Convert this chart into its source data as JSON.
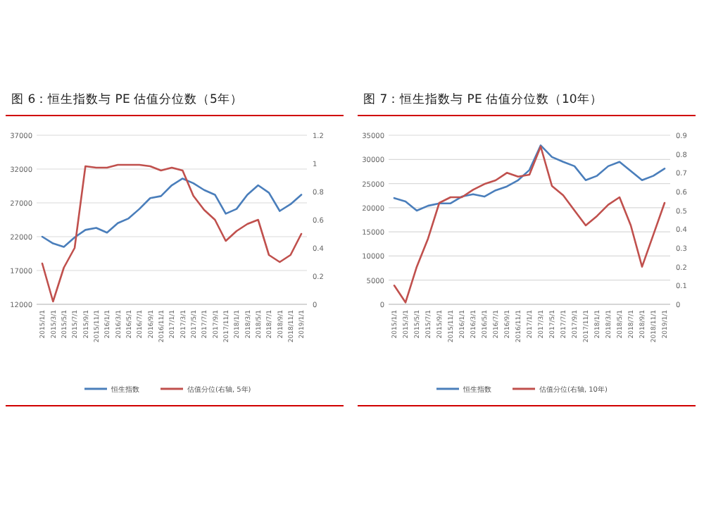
{
  "chart_data": [
    {
      "type": "line",
      "title": "图 6：恒生指数与 PE 估值分位数（5年）",
      "categories": [
        "2015/1/1",
        "2015/3/1",
        "2015/5/1",
        "2015/7/1",
        "2015/9/1",
        "2015/11/1",
        "2016/1/1",
        "2016/3/1",
        "2016/5/1",
        "2016/7/1",
        "2016/9/1",
        "2016/11/1",
        "2017/1/1",
        "2017/3/1",
        "2017/5/1",
        "2017/7/1",
        "2017/9/1",
        "2017/11/1",
        "2018/1/1",
        "2018/3/1",
        "2018/5/1",
        "2018/7/1",
        "2018/9/1",
        "2018/11/1",
        "2019/1/1"
      ],
      "series": [
        {
          "name": "恒生指数",
          "color": "#4a7ebb",
          "values": [
            22000,
            21000,
            20500,
            21900,
            23000,
            23300,
            22600,
            24000,
            24700,
            26100,
            27700,
            28000,
            29600,
            30600,
            29900,
            28900,
            28200,
            25400,
            26100,
            28200,
            29600,
            28500,
            25800,
            26800,
            28200
          ]
        },
        {
          "name": "估值分位(右轴, 5年)",
          "color": "#c0504d",
          "axis": "y2",
          "values": [
            0.29,
            0.02,
            0.26,
            0.4,
            0.98,
            0.97,
            0.97,
            0.99,
            0.99,
            0.99,
            0.98,
            0.95,
            0.97,
            0.95,
            0.77,
            0.67,
            0.6,
            0.45,
            0.52,
            0.57,
            0.6,
            0.35,
            0.3,
            0.35,
            0.5
          ]
        }
      ],
      "ylim": [
        12000,
        37000
      ],
      "yticks": [
        12000,
        17000,
        22000,
        27000,
        32000,
        37000
      ],
      "y2lim": [
        0,
        1.2
      ],
      "y2ticks": [
        0,
        0.2,
        0.4,
        0.6,
        0.8,
        1,
        1.2
      ],
      "grid": "y",
      "legend": "bottom",
      "marker": "none"
    },
    {
      "type": "line",
      "title": "图 7：恒生指数与 PE 估值分位数（10年）",
      "categories": [
        "2015/1/1",
        "2015/3/1",
        "2015/5/1",
        "2015/7/1",
        "2015/9/1",
        "2015/11/1",
        "2016/1/1",
        "2016/3/1",
        "2016/5/1",
        "2016/7/1",
        "2016/9/1",
        "2016/11/1",
        "2017/1/1",
        "2017/3/1",
        "2017/5/1",
        "2017/7/1",
        "2017/9/1",
        "2017/11/1",
        "2018/1/1",
        "2018/3/1",
        "2018/5/1",
        "2018/7/1",
        "2018/9/1",
        "2018/11/1",
        "2019/1/1"
      ],
      "series": [
        {
          "name": "恒生指数",
          "color": "#4a7ebb",
          "values": [
            22000,
            21300,
            19400,
            20400,
            20900,
            20900,
            22300,
            22800,
            22300,
            23600,
            24400,
            25700,
            27800,
            32900,
            30500,
            29500,
            28600,
            25700,
            26600,
            28600,
            29500,
            27600,
            25700,
            26600,
            28100
          ]
        },
        {
          "name": "估值分位(右轴, 10年)",
          "color": "#c0504d",
          "axis": "y2",
          "values": [
            0.1,
            0.01,
            0.2,
            0.35,
            0.54,
            0.57,
            0.57,
            0.61,
            0.64,
            0.66,
            0.7,
            0.68,
            0.69,
            0.84,
            0.63,
            0.58,
            0.5,
            0.42,
            0.47,
            0.53,
            0.57,
            0.42,
            0.2,
            0.37,
            0.54
          ]
        }
      ],
      "ylim": [
        0,
        35000
      ],
      "yticks": [
        0,
        5000,
        10000,
        15000,
        20000,
        25000,
        30000,
        35000
      ],
      "y2lim": [
        0,
        0.9
      ],
      "y2ticks": [
        0,
        0.1,
        0.2,
        0.3,
        0.4,
        0.5,
        0.6,
        0.7,
        0.8,
        0.9
      ],
      "grid": "y",
      "legend": "bottom",
      "marker": "none"
    }
  ]
}
